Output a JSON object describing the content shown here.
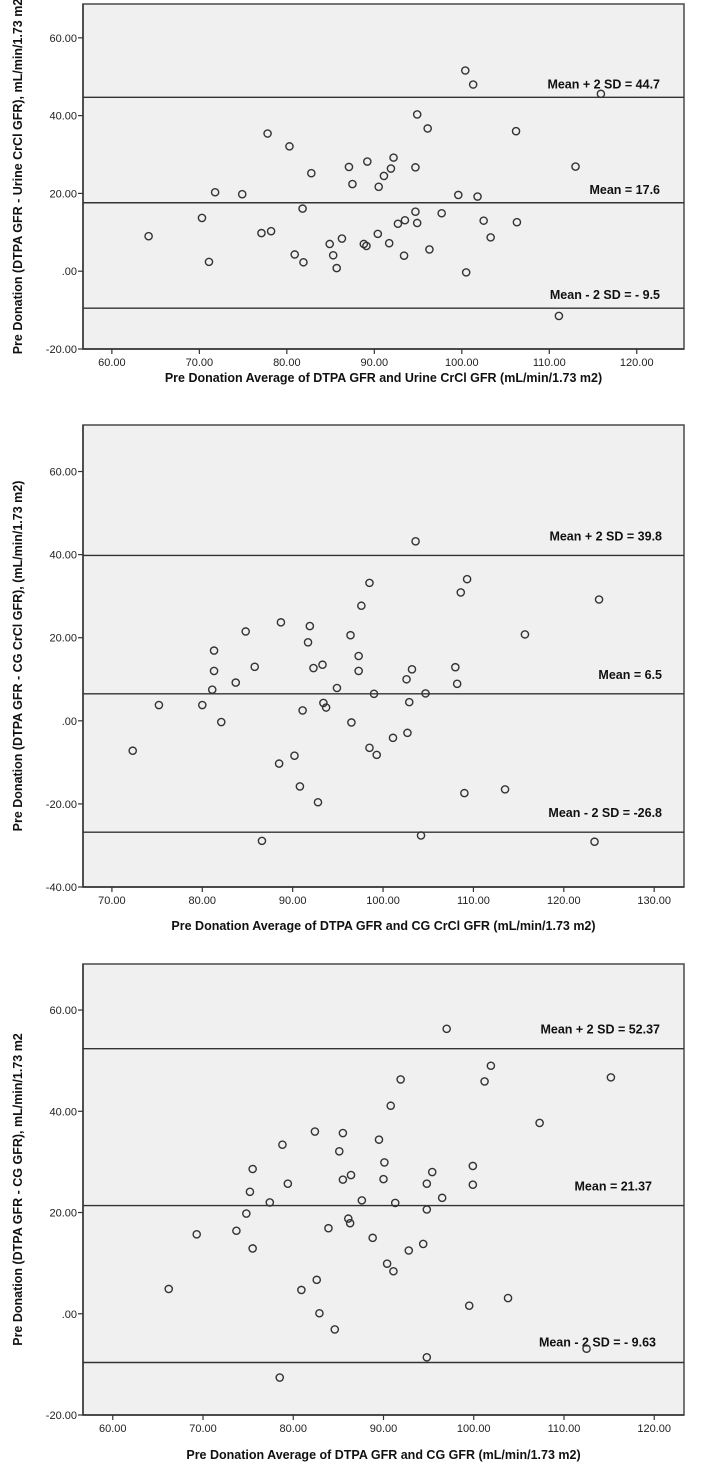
{
  "chart_data": [
    {
      "type": "scatter",
      "title": "",
      "xlabel": "Pre Donation Average of DTPA GFR and Urine CrCl GFR (mL/min/1.73 m2)",
      "ylabel": "Pre Donation (DTPA GFR - Urine CrCl GFR), mL/min/1.73 m2",
      "xlim": [
        56.7,
        125.4
      ],
      "ylim": [
        -20,
        68.7
      ],
      "xticks": [
        60,
        70,
        80,
        90,
        100,
        110,
        120
      ],
      "xtick_labels": [
        "60.00",
        "70.00",
        "80.00",
        "90.00",
        "100.00",
        "110.00",
        "120.00"
      ],
      "yticks": [
        -20,
        0,
        20,
        40,
        60
      ],
      "ytick_labels": [
        "-20.00",
        ".00",
        "20.00",
        "40.00",
        "60.00"
      ],
      "grid": false,
      "reference_lines": [
        {
          "value": 44.7,
          "label": "Mean + 2 SD = 44.7"
        },
        {
          "value": 17.6,
          "label": "Mean = 17.6"
        },
        {
          "value": -9.5,
          "label": "Mean - 2 SD = - 9.5"
        }
      ],
      "points": [
        [
          100.4,
          51.6
        ],
        [
          101.3,
          48.0
        ],
        [
          115.9,
          45.6
        ],
        [
          94.9,
          40.3
        ],
        [
          96.1,
          36.7
        ],
        [
          106.2,
          36.0
        ],
        [
          77.8,
          35.4
        ],
        [
          80.3,
          32.1
        ],
        [
          92.2,
          29.2
        ],
        [
          89.2,
          28.2
        ],
        [
          87.1,
          26.8
        ],
        [
          94.7,
          26.7
        ],
        [
          113.0,
          26.9
        ],
        [
          91.9,
          26.4
        ],
        [
          91.1,
          24.5
        ],
        [
          82.8,
          25.2
        ],
        [
          87.5,
          22.4
        ],
        [
          90.5,
          21.7
        ],
        [
          71.8,
          20.3
        ],
        [
          74.9,
          19.8
        ],
        [
          99.6,
          19.6
        ],
        [
          101.8,
          19.2
        ],
        [
          81.8,
          16.1
        ],
        [
          94.7,
          15.3
        ],
        [
          97.7,
          14.9
        ],
        [
          70.3,
          13.7
        ],
        [
          93.5,
          13.1
        ],
        [
          102.5,
          13.0
        ],
        [
          92.7,
          12.2
        ],
        [
          94.9,
          12.4
        ],
        [
          106.3,
          12.6
        ],
        [
          78.2,
          10.3
        ],
        [
          77.1,
          9.8
        ],
        [
          64.2,
          9.0
        ],
        [
          90.4,
          9.6
        ],
        [
          103.3,
          8.7
        ],
        [
          86.3,
          8.4
        ],
        [
          84.9,
          7.0
        ],
        [
          88.8,
          7.0
        ],
        [
          91.7,
          7.2
        ],
        [
          89.1,
          6.5
        ],
        [
          96.3,
          5.6
        ],
        [
          80.9,
          4.3
        ],
        [
          85.3,
          4.1
        ],
        [
          93.4,
          4.0
        ],
        [
          71.1,
          2.4
        ],
        [
          81.9,
          2.3
        ],
        [
          85.7,
          0.8
        ],
        [
          100.5,
          -0.3
        ],
        [
          111.1,
          -11.5
        ]
      ]
    },
    {
      "type": "scatter",
      "title": "",
      "xlabel": "Pre Donation Average of DTPA GFR and CG CrCl GFR (mL/min/1.73 m2)",
      "ylabel": "Pre Donation (DTPA GFR - CG CrCl GFR), (mL/min/1.73 m2)",
      "xlim": [
        66.8,
        133.3
      ],
      "ylim": [
        -40,
        71.2
      ],
      "xticks": [
        70,
        80,
        90,
        100,
        110,
        120,
        130
      ],
      "xtick_labels": [
        "70.00",
        "80.00",
        "90.00",
        "100.00",
        "110.00",
        "120.00",
        "130.00"
      ],
      "yticks": [
        -40,
        -20,
        0,
        20,
        40,
        60
      ],
      "ytick_labels": [
        "-40.00",
        "-20.00",
        ".00",
        "20.00",
        "40.00",
        "60.00"
      ],
      "grid": false,
      "reference_lines": [
        {
          "value": 39.8,
          "label": "Mean + 2 SD = 39.8"
        },
        {
          "value": 6.5,
          "label": "Mean = 6.5"
        },
        {
          "value": -26.8,
          "label": "Mean - 2 SD = -26.8"
        }
      ],
      "points": [
        [
          72.3,
          -7.2
        ],
        [
          75.2,
          3.8
        ],
        [
          80.0,
          3.8
        ],
        [
          81.1,
          7.5
        ],
        [
          81.3,
          12.0
        ],
        [
          81.3,
          16.9
        ],
        [
          82.1,
          -0.3
        ],
        [
          83.7,
          9.2
        ],
        [
          84.8,
          21.5
        ],
        [
          85.8,
          13.0
        ],
        [
          86.6,
          -28.9
        ],
        [
          88.5,
          -10.3
        ],
        [
          88.7,
          23.7
        ],
        [
          90.2,
          -8.4
        ],
        [
          90.8,
          -15.8
        ],
        [
          91.1,
          2.5
        ],
        [
          91.7,
          18.9
        ],
        [
          91.9,
          22.8
        ],
        [
          92.3,
          12.7
        ],
        [
          92.8,
          -19.6
        ],
        [
          93.3,
          13.5
        ],
        [
          93.4,
          4.3
        ],
        [
          93.7,
          3.2
        ],
        [
          94.9,
          7.9
        ],
        [
          96.4,
          20.6
        ],
        [
          96.5,
          -0.4
        ],
        [
          97.3,
          15.6
        ],
        [
          97.3,
          12.0
        ],
        [
          97.6,
          27.7
        ],
        [
          98.5,
          33.2
        ],
        [
          98.5,
          -6.5
        ],
        [
          99.0,
          6.5
        ],
        [
          99.3,
          -8.2
        ],
        [
          101.1,
          -4.1
        ],
        [
          102.6,
          10.0
        ],
        [
          102.7,
          -2.9
        ],
        [
          102.9,
          4.5
        ],
        [
          103.2,
          12.4
        ],
        [
          103.6,
          43.2
        ],
        [
          104.2,
          -27.6
        ],
        [
          104.7,
          6.6
        ],
        [
          108.0,
          12.9
        ],
        [
          108.2,
          8.9
        ],
        [
          108.6,
          30.9
        ],
        [
          109.0,
          -17.4
        ],
        [
          109.3,
          34.1
        ],
        [
          113.5,
          -16.5
        ],
        [
          115.7,
          20.8
        ],
        [
          123.4,
          -29.1
        ],
        [
          123.9,
          29.2
        ]
      ]
    },
    {
      "type": "scatter",
      "title": "",
      "xlabel": "Pre Donation Average of DTPA GFR and CG GFR (mL/min/1.73 m2)",
      "ylabel": "Pre Donation (DTPA GFR - CG GFR), mL/min/1.73 m2",
      "xlim": [
        56.7,
        123.3
      ],
      "ylim": [
        -20,
        69.1
      ],
      "xticks": [
        60,
        70,
        80,
        90,
        100,
        110,
        120
      ],
      "xtick_labels": [
        "60.00",
        "70.00",
        "80.00",
        "90.00",
        "100.00",
        "110.00",
        "120.00"
      ],
      "yticks": [
        -20,
        0,
        20,
        40,
        60
      ],
      "ytick_labels": [
        "-20.00",
        ".00",
        "20.00",
        "40.00",
        "60.00"
      ],
      "grid": false,
      "reference_lines": [
        {
          "value": 52.37,
          "label": "Mean + 2 SD = 52.37"
        },
        {
          "value": 21.37,
          "label": "Mean = 21.37"
        },
        {
          "value": -9.63,
          "label": "Mean - 2 SD = - 9.63"
        }
      ],
      "points": [
        [
          66.2,
          4.9
        ],
        [
          69.3,
          15.7
        ],
        [
          73.7,
          16.4
        ],
        [
          74.8,
          19.8
        ],
        [
          75.2,
          24.1
        ],
        [
          75.5,
          28.6
        ],
        [
          75.5,
          12.9
        ],
        [
          77.4,
          22.0
        ],
        [
          78.5,
          -12.6
        ],
        [
          78.8,
          33.4
        ],
        [
          79.4,
          25.7
        ],
        [
          80.9,
          4.7
        ],
        [
          82.4,
          36.0
        ],
        [
          82.6,
          6.7
        ],
        [
          82.9,
          0.1
        ],
        [
          83.9,
          16.9
        ],
        [
          84.6,
          -3.1
        ],
        [
          85.1,
          32.1
        ],
        [
          85.5,
          35.7
        ],
        [
          85.5,
          26.5
        ],
        [
          86.1,
          18.8
        ],
        [
          86.3,
          17.9
        ],
        [
          86.4,
          27.4
        ],
        [
          87.6,
          22.4
        ],
        [
          88.8,
          15.0
        ],
        [
          89.5,
          34.4
        ],
        [
          90.0,
          26.6
        ],
        [
          90.1,
          29.9
        ],
        [
          90.4,
          9.9
        ],
        [
          90.8,
          41.1
        ],
        [
          91.1,
          8.4
        ],
        [
          91.3,
          21.9
        ],
        [
          91.9,
          46.3
        ],
        [
          92.8,
          12.5
        ],
        [
          94.4,
          13.8
        ],
        [
          94.8,
          25.7
        ],
        [
          94.8,
          20.6
        ],
        [
          94.8,
          -8.6
        ],
        [
          95.4,
          28.0
        ],
        [
          96.5,
          22.9
        ],
        [
          97.0,
          56.3
        ],
        [
          99.5,
          1.6
        ],
        [
          99.9,
          29.2
        ],
        [
          99.9,
          25.5
        ],
        [
          101.2,
          45.9
        ],
        [
          101.9,
          49.0
        ],
        [
          103.8,
          3.1
        ],
        [
          107.3,
          37.7
        ],
        [
          112.5,
          -6.9
        ],
        [
          115.2,
          46.7
        ]
      ]
    }
  ]
}
